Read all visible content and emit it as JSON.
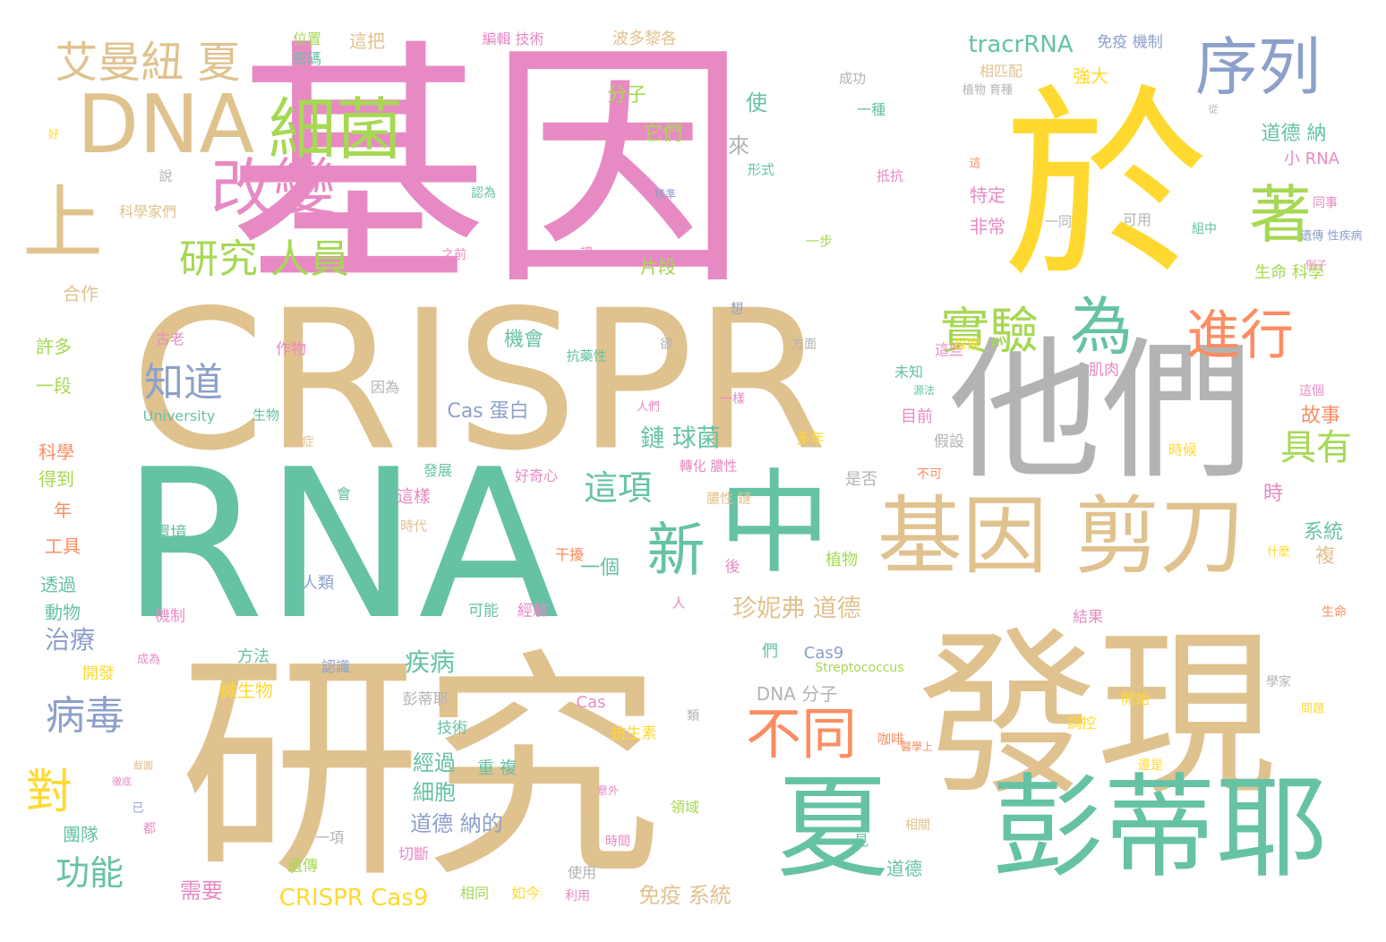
{
  "cloud": {
    "palette": {
      "tan": "#e0c28f",
      "green": "#66c2a5",
      "pink": "#e78ac3",
      "yellow": "#ffd92f",
      "blue": "#8da0cb",
      "orange": "#fc8d62",
      "lime": "#a6d854",
      "gray": "#b3b3b3"
    },
    "words": [
      {
        "text": "基因",
        "color": "pink"
      },
      {
        "text": "研究",
        "color": "tan"
      },
      {
        "text": "CRISPR",
        "color": "tan"
      },
      {
        "text": "RNA",
        "color": "green"
      },
      {
        "text": "於",
        "color": "yellow"
      },
      {
        "text": "發現",
        "color": "tan"
      },
      {
        "text": "他們",
        "color": "gray"
      },
      {
        "text": "彭蒂耶",
        "color": "green"
      },
      {
        "text": "夏",
        "color": "green"
      },
      {
        "text": "中",
        "color": "green"
      },
      {
        "text": "基因 剪刀",
        "color": "tan"
      },
      {
        "text": "DNA",
        "color": "tan"
      },
      {
        "text": "上",
        "color": "tan"
      },
      {
        "text": "細菌",
        "color": "lime"
      },
      {
        "text": "改變",
        "color": "pink"
      },
      {
        "text": "序列",
        "color": "blue"
      },
      {
        "text": "著",
        "color": "lime"
      },
      {
        "text": "為",
        "color": "green"
      },
      {
        "text": "進行",
        "color": "orange"
      },
      {
        "text": "實驗",
        "color": "lime"
      },
      {
        "text": "新",
        "color": "green"
      },
      {
        "text": "不同",
        "color": "orange"
      },
      {
        "text": "艾曼紐 夏",
        "color": "tan"
      },
      {
        "text": "研究 人員",
        "color": "lime"
      },
      {
        "text": "知道",
        "color": "blue"
      },
      {
        "text": "對",
        "color": "yellow"
      },
      {
        "text": "病毒",
        "color": "blue"
      },
      {
        "text": "具有",
        "color": "lime"
      },
      {
        "text": "這項",
        "color": "green"
      },
      {
        "text": "功能",
        "color": "green"
      },
      {
        "text": "tracrRNA",
        "color": "green"
      },
      {
        "text": "鏈 球菌",
        "color": "green"
      },
      {
        "text": "珍妮弗 道德",
        "color": "tan"
      },
      {
        "text": "疾病",
        "color": "green"
      },
      {
        "text": "治療",
        "color": "blue"
      },
      {
        "text": "CRISPR Cas9",
        "color": "yellow"
      },
      {
        "text": "免疫 系統",
        "color": "tan"
      },
      {
        "text": "需要",
        "color": "pink"
      },
      {
        "text": "細胞",
        "color": "green"
      },
      {
        "text": "經過",
        "color": "green"
      },
      {
        "text": "道德 納的",
        "color": "blue"
      },
      {
        "text": "機會",
        "color": "green"
      },
      {
        "text": "Cas 蛋白",
        "color": "blue"
      },
      {
        "text": "一個",
        "color": "green"
      },
      {
        "text": "時",
        "color": "pink"
      },
      {
        "text": "系統",
        "color": "green"
      },
      {
        "text": "複",
        "color": "tan"
      },
      {
        "text": "故事",
        "color": "orange"
      },
      {
        "text": "道德 納",
        "color": "green"
      },
      {
        "text": "小 RNA",
        "color": "pink"
      },
      {
        "text": "分子",
        "color": "lime"
      },
      {
        "text": "它們",
        "color": "lime"
      },
      {
        "text": "使",
        "color": "green"
      },
      {
        "text": "來",
        "color": "gray"
      },
      {
        "text": "特定",
        "color": "pink"
      },
      {
        "text": "非常",
        "color": "pink"
      },
      {
        "text": "片段",
        "color": "lime"
      },
      {
        "text": "強大",
        "color": "yellow"
      },
      {
        "text": "相匹配",
        "color": "tan"
      },
      {
        "text": "免疫 機制",
        "color": "blue"
      },
      {
        "text": "波多黎各",
        "color": "tan"
      },
      {
        "text": "編輯 技術",
        "color": "pink"
      },
      {
        "text": "這把",
        "color": "tan"
      },
      {
        "text": "位置",
        "color": "lime"
      },
      {
        "text": "密碼",
        "color": "green"
      },
      {
        "text": "University",
        "color": "green"
      },
      {
        "text": "DNA 分子",
        "color": "gray"
      },
      {
        "text": "Cas9",
        "color": "blue"
      },
      {
        "text": "Streptococcus",
        "color": "lime"
      },
      {
        "text": "Cas",
        "color": "pink"
      },
      {
        "text": "生命 科學",
        "color": "lime"
      },
      {
        "text": "科學家們",
        "color": "tan"
      },
      {
        "text": "合作",
        "color": "tan"
      },
      {
        "text": "許多",
        "color": "lime"
      },
      {
        "text": "一段",
        "color": "lime"
      },
      {
        "text": "科學",
        "color": "orange"
      },
      {
        "text": "得到",
        "color": "lime"
      },
      {
        "text": "年",
        "color": "orange"
      },
      {
        "text": "工具",
        "color": "orange"
      },
      {
        "text": "透過",
        "color": "green"
      },
      {
        "text": "動物",
        "color": "green"
      },
      {
        "text": "開發",
        "color": "yellow"
      },
      {
        "text": "團隊",
        "color": "green"
      },
      {
        "text": "古老",
        "color": "pink"
      },
      {
        "text": "作物",
        "color": "pink"
      },
      {
        "text": "環境",
        "color": "green"
      },
      {
        "text": "機制",
        "color": "pink"
      },
      {
        "text": "人類",
        "color": "blue"
      },
      {
        "text": "方法",
        "color": "green"
      },
      {
        "text": "微生物",
        "color": "yellow"
      },
      {
        "text": "認識",
        "color": "blue"
      },
      {
        "text": "可能",
        "color": "green"
      },
      {
        "text": "經驗",
        "color": "pink"
      },
      {
        "text": "彭蒂耶",
        "color": "gray"
      },
      {
        "text": "技術",
        "color": "green"
      },
      {
        "text": "抗生素",
        "color": "yellow"
      },
      {
        "text": "重 複",
        "color": "green"
      },
      {
        "text": "一項",
        "color": "gray"
      },
      {
        "text": "切斷",
        "color": "pink"
      },
      {
        "text": "遺傳",
        "color": "lime"
      },
      {
        "text": "相同",
        "color": "lime"
      },
      {
        "text": "如今",
        "color": "yellow"
      },
      {
        "text": "利用",
        "color": "pink"
      },
      {
        "text": "使用",
        "color": "gray"
      },
      {
        "text": "道德",
        "color": "green"
      },
      {
        "text": "領域",
        "color": "lime"
      },
      {
        "text": "見",
        "color": "green"
      },
      {
        "text": "相關",
        "color": "tan"
      },
      {
        "text": "咖啡",
        "color": "orange"
      },
      {
        "text": "結果",
        "color": "pink"
      },
      {
        "text": "開始",
        "color": "yellow"
      },
      {
        "text": "調控",
        "color": "yellow"
      },
      {
        "text": "是否",
        "color": "gray"
      },
      {
        "text": "不可",
        "color": "orange"
      },
      {
        "text": "假設",
        "color": "gray"
      },
      {
        "text": "目前",
        "color": "pink"
      },
      {
        "text": "多年",
        "color": "yellow"
      },
      {
        "text": "肌肉",
        "color": "pink"
      },
      {
        "text": "未知",
        "color": "green"
      },
      {
        "text": "這些",
        "color": "pink"
      },
      {
        "text": "卻",
        "color": "gray"
      },
      {
        "text": "方面",
        "color": "gray"
      },
      {
        "text": "抗藥性",
        "color": "green"
      },
      {
        "text": "一樣",
        "color": "pink"
      },
      {
        "text": "人們",
        "color": "pink"
      },
      {
        "text": "好奇心",
        "color": "pink"
      },
      {
        "text": "發展",
        "color": "green"
      },
      {
        "text": "這樣",
        "color": "pink"
      },
      {
        "text": "會",
        "color": "green"
      },
      {
        "text": "時代",
        "color": "tan"
      },
      {
        "text": "干擾",
        "color": "orange"
      },
      {
        "text": "植物",
        "color": "lime"
      },
      {
        "text": "後",
        "color": "pink"
      },
      {
        "text": "們",
        "color": "green"
      },
      {
        "text": "人",
        "color": "pink"
      },
      {
        "text": "生物",
        "color": "green"
      },
      {
        "text": "癌症",
        "color": "tan"
      },
      {
        "text": "因為",
        "color": "gray"
      },
      {
        "text": "讓",
        "color": "pink"
      },
      {
        "text": "一步",
        "color": "lime"
      },
      {
        "text": "形式",
        "color": "green"
      },
      {
        "text": "一種",
        "color": "green"
      },
      {
        "text": "成功",
        "color": "gray"
      },
      {
        "text": "抵抗",
        "color": "pink"
      },
      {
        "text": "認為",
        "color": "green"
      },
      {
        "text": "說",
        "color": "gray"
      },
      {
        "text": "這",
        "color": "orange"
      },
      {
        "text": "植物 育種",
        "color": "gray"
      },
      {
        "text": "遺傳 性疾病",
        "color": "blue"
      },
      {
        "text": "組中",
        "color": "green"
      },
      {
        "text": "可用",
        "color": "gray"
      },
      {
        "text": "同事",
        "color": "pink"
      },
      {
        "text": "探索",
        "color": "yellow"
      },
      {
        "text": "這個",
        "color": "pink"
      },
      {
        "text": "時候",
        "color": "yellow"
      },
      {
        "text": "生命",
        "color": "orange"
      },
      {
        "text": "問題",
        "color": "yellow"
      },
      {
        "text": "什麼",
        "color": "yellow"
      },
      {
        "text": "還是",
        "color": "yellow"
      },
      {
        "text": "類",
        "color": "gray"
      },
      {
        "text": "從",
        "color": "gray"
      },
      {
        "text": "一同",
        "color": "gray"
      },
      {
        "text": "想",
        "color": "blue"
      },
      {
        "text": "都",
        "color": "pink"
      },
      {
        "text": "已",
        "color": "blue"
      },
      {
        "text": "之前",
        "color": "pink"
      },
      {
        "text": "轉化 膿性",
        "color": "pink"
      },
      {
        "text": "膿性 鏈",
        "color": "tan"
      },
      {
        "text": "源法",
        "color": "green"
      },
      {
        "text": "例子",
        "color": "pink"
      },
      {
        "text": "精準",
        "color": "blue"
      },
      {
        "text": "醫學上",
        "color": "orange"
      },
      {
        "text": "成為",
        "color": "pink"
      },
      {
        "text": "學家",
        "color": "gray"
      },
      {
        "text": "好",
        "color": "yellow"
      },
      {
        "text": "意外",
        "color": "pink"
      },
      {
        "text": "時間",
        "color": "pink"
      },
      {
        "text": "截圖",
        "color": "tan"
      },
      {
        "text": "徹底",
        "color": "pink"
      },
      {
        "text": "較",
        "color": "green"
      }
    ]
  }
}
